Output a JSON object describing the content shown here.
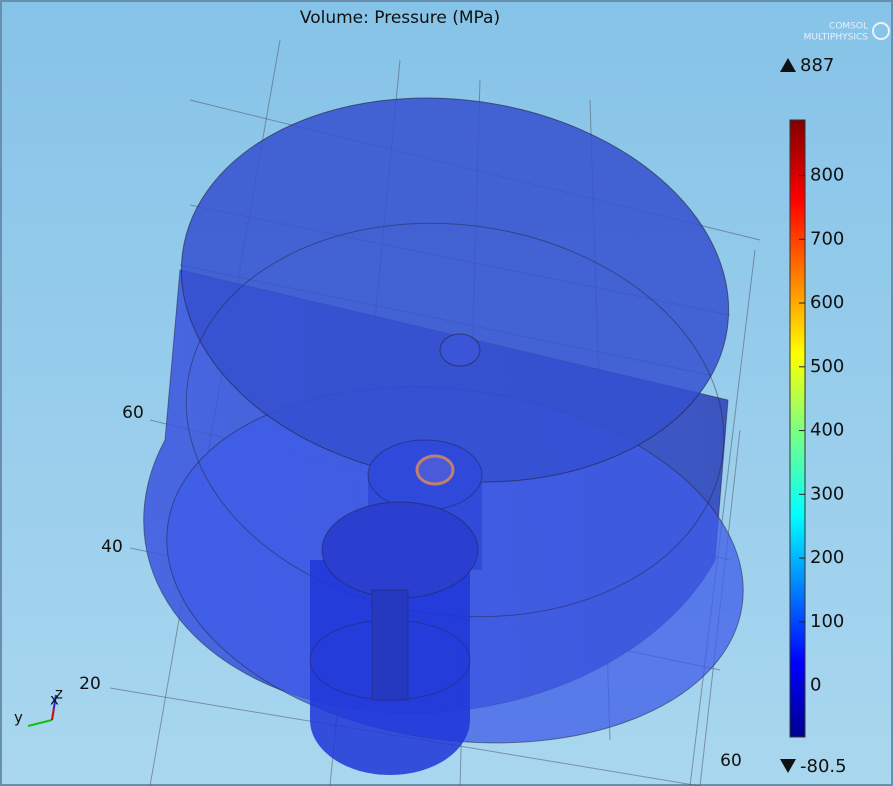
{
  "title": "Volume: Pressure (MPa)",
  "logo": [
    "COMSOL",
    "MULTIPHYSICS"
  ],
  "colorbar": {
    "max": 887,
    "min": -80.5,
    "ticks": [
      0,
      100,
      200,
      300,
      400,
      500,
      600,
      700,
      800
    ]
  },
  "axis_labels": [
    "60",
    "40",
    "20",
    "60"
  ],
  "triad": [
    "y",
    "x",
    "z"
  ]
}
